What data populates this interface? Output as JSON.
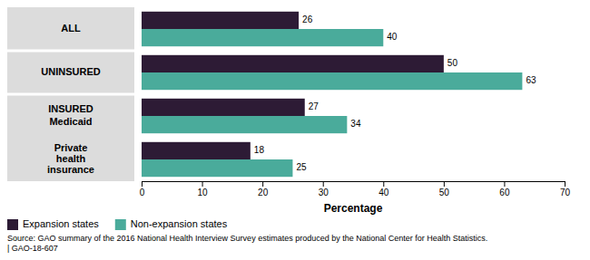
{
  "chart_data": {
    "type": "bar",
    "orientation": "horizontal",
    "categories": [
      "ALL",
      "UNINSURED",
      "Medicaid",
      "Private\nhealth\ninsurance"
    ],
    "series": [
      {
        "name": "Expansion states",
        "color": "#2d1b35",
        "values": [
          26,
          50,
          27,
          18
        ]
      },
      {
        "name": "Non-expansion states",
        "color": "#4aab9b",
        "values": [
          40,
          63,
          34,
          25
        ]
      }
    ],
    "xlabel": "Percentage",
    "xlim": [
      0,
      70
    ],
    "xticks": [
      0,
      10,
      20,
      30,
      40,
      50,
      60,
      70
    ],
    "data_labels": true,
    "grid": false,
    "legend": "lower left",
    "annotations": [
      {
        "text": "INSURED",
        "category": "Medicaid"
      },
      {
        "text": "Source: GAO summary of the 2016 National Health Interview Survey estimates produced by the National Center for Health Statistics.\n| GAO-18-607"
      }
    ]
  }
}
